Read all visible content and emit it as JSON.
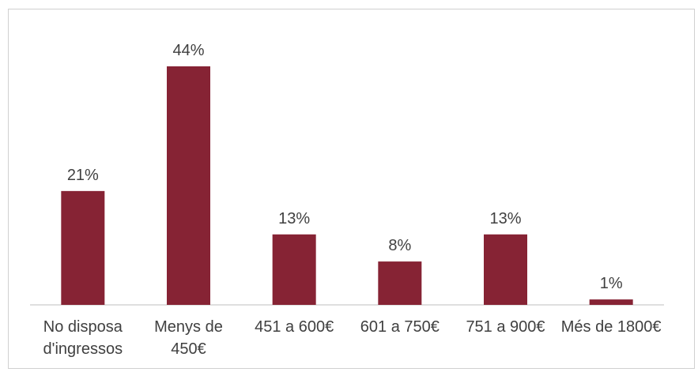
{
  "chart_data": {
    "type": "bar",
    "categories": [
      "No disposa d'ingressos",
      "Menys de 450€",
      "451 a 600€",
      "601 a 750€",
      "751 a 900€",
      "Més de 1800€"
    ],
    "values": [
      21,
      44,
      13,
      8,
      13,
      1
    ],
    "value_labels": [
      "21%",
      "44%",
      "13%",
      "8%",
      "13%",
      "1%"
    ],
    "color": "#862334"
  }
}
